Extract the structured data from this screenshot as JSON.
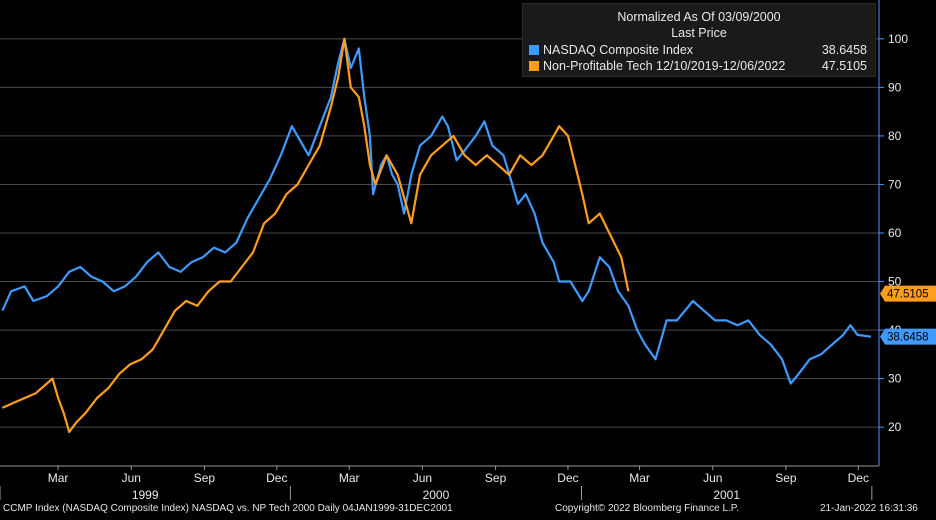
{
  "chart_data": {
    "type": "line",
    "title": "Normalized As Of 03/09/2000",
    "subtitle": "Last Price",
    "ylim": [
      12,
      108
    ],
    "y_ticks": [
      20,
      30,
      40,
      50,
      60,
      70,
      80,
      90,
      100
    ],
    "month_labels": [
      "Mar",
      "Jun",
      "Sep",
      "Dec",
      "Mar",
      "Jun",
      "Sep",
      "Dec",
      "Mar",
      "Jun",
      "Sep",
      "Dec"
    ],
    "year_labels": [
      "1999",
      "2000",
      "2001"
    ],
    "series": [
      {
        "name": "NASDAQ Composite Index",
        "color": "#3f9bff",
        "last": 38.6458,
        "last_label": "38.6458",
        "points": [
          [
            "1999-01-04",
            44
          ],
          [
            "1999-01-15",
            48
          ],
          [
            "1999-02-01",
            49
          ],
          [
            "1999-02-12",
            46
          ],
          [
            "1999-03-01",
            47
          ],
          [
            "1999-03-15",
            49
          ],
          [
            "1999-03-29",
            52
          ],
          [
            "1999-04-12",
            53
          ],
          [
            "1999-04-26",
            51
          ],
          [
            "1999-05-10",
            50
          ],
          [
            "1999-05-24",
            48
          ],
          [
            "1999-06-07",
            49
          ],
          [
            "1999-06-21",
            51
          ],
          [
            "1999-07-05",
            54
          ],
          [
            "1999-07-19",
            56
          ],
          [
            "1999-08-02",
            53
          ],
          [
            "1999-08-16",
            52
          ],
          [
            "1999-08-30",
            54
          ],
          [
            "1999-09-13",
            55
          ],
          [
            "1999-09-27",
            57
          ],
          [
            "1999-10-11",
            56
          ],
          [
            "1999-10-25",
            58
          ],
          [
            "1999-11-08",
            63
          ],
          [
            "1999-11-22",
            67
          ],
          [
            "1999-12-06",
            71
          ],
          [
            "1999-12-20",
            76
          ],
          [
            "2000-01-03",
            82
          ],
          [
            "2000-01-10",
            80
          ],
          [
            "2000-01-24",
            76
          ],
          [
            "2000-02-07",
            82
          ],
          [
            "2000-02-21",
            88
          ],
          [
            "2000-03-01",
            95
          ],
          [
            "2000-03-09",
            100
          ],
          [
            "2000-03-17",
            94
          ],
          [
            "2000-03-27",
            98
          ],
          [
            "2000-04-03",
            88
          ],
          [
            "2000-04-10",
            80
          ],
          [
            "2000-04-14",
            68
          ],
          [
            "2000-04-24",
            74
          ],
          [
            "2000-05-01",
            76
          ],
          [
            "2000-05-08",
            72
          ],
          [
            "2000-05-15",
            70
          ],
          [
            "2000-05-23",
            64
          ],
          [
            "2000-06-01",
            72
          ],
          [
            "2000-06-12",
            78
          ],
          [
            "2000-06-26",
            80
          ],
          [
            "2000-07-10",
            84
          ],
          [
            "2000-07-17",
            82
          ],
          [
            "2000-07-28",
            75
          ],
          [
            "2000-08-07",
            77
          ],
          [
            "2000-08-21",
            80
          ],
          [
            "2000-09-01",
            83
          ],
          [
            "2000-09-11",
            78
          ],
          [
            "2000-09-25",
            76
          ],
          [
            "2000-10-06",
            70
          ],
          [
            "2000-10-13",
            66
          ],
          [
            "2000-10-23",
            68
          ],
          [
            "2000-11-03",
            64
          ],
          [
            "2000-11-13",
            58
          ],
          [
            "2000-11-27",
            54
          ],
          [
            "2000-12-04",
            50
          ],
          [
            "2000-12-18",
            50
          ],
          [
            "2001-01-02",
            46
          ],
          [
            "2001-01-10",
            48
          ],
          [
            "2001-01-24",
            55
          ],
          [
            "2001-02-05",
            53
          ],
          [
            "2001-02-16",
            48
          ],
          [
            "2001-03-01",
            45
          ],
          [
            "2001-03-12",
            40
          ],
          [
            "2001-03-22",
            37
          ],
          [
            "2001-04-04",
            34
          ],
          [
            "2001-04-18",
            42
          ],
          [
            "2001-05-01",
            42
          ],
          [
            "2001-05-21",
            46
          ],
          [
            "2001-06-04",
            44
          ],
          [
            "2001-06-18",
            42
          ],
          [
            "2001-07-02",
            42
          ],
          [
            "2001-07-16",
            41
          ],
          [
            "2001-07-30",
            42
          ],
          [
            "2001-08-13",
            39
          ],
          [
            "2001-08-27",
            37
          ],
          [
            "2001-09-10",
            34
          ],
          [
            "2001-09-21",
            29
          ],
          [
            "2001-10-01",
            31
          ],
          [
            "2001-10-15",
            34
          ],
          [
            "2001-10-29",
            35
          ],
          [
            "2001-11-12",
            37
          ],
          [
            "2001-11-26",
            39
          ],
          [
            "2001-12-05",
            41
          ],
          [
            "2001-12-14",
            39
          ],
          [
            "2001-12-31",
            38.6458
          ]
        ]
      },
      {
        "name": "Non-Profitable Tech 12/10/2019-12/06/2022",
        "color": "#ff9d1c",
        "last": 47.5105,
        "last_label": "47.5105",
        "points": [
          [
            "1999-01-04",
            24
          ],
          [
            "1999-01-18",
            25
          ],
          [
            "1999-02-01",
            26
          ],
          [
            "1999-02-15",
            27
          ],
          [
            "1999-03-01",
            29
          ],
          [
            "1999-03-08",
            30
          ],
          [
            "1999-03-15",
            26
          ],
          [
            "1999-03-22",
            23
          ],
          [
            "1999-03-29",
            19
          ],
          [
            "1999-04-07",
            21
          ],
          [
            "1999-04-19",
            23
          ],
          [
            "1999-05-03",
            26
          ],
          [
            "1999-05-17",
            28
          ],
          [
            "1999-05-31",
            31
          ],
          [
            "1999-06-14",
            33
          ],
          [
            "1999-06-28",
            34
          ],
          [
            "1999-07-12",
            36
          ],
          [
            "1999-07-26",
            40
          ],
          [
            "1999-08-09",
            44
          ],
          [
            "1999-08-23",
            46
          ],
          [
            "1999-09-06",
            45
          ],
          [
            "1999-09-20",
            48
          ],
          [
            "1999-10-04",
            50
          ],
          [
            "1999-10-18",
            50
          ],
          [
            "1999-11-01",
            53
          ],
          [
            "1999-11-15",
            56
          ],
          [
            "1999-11-29",
            62
          ],
          [
            "1999-12-13",
            64
          ],
          [
            "1999-12-27",
            68
          ],
          [
            "2000-01-10",
            70
          ],
          [
            "2000-01-24",
            74
          ],
          [
            "2000-02-07",
            78
          ],
          [
            "2000-02-21",
            86
          ],
          [
            "2000-03-01",
            92
          ],
          [
            "2000-03-09",
            100
          ],
          [
            "2000-03-17",
            90
          ],
          [
            "2000-03-27",
            88
          ],
          [
            "2000-04-03",
            82
          ],
          [
            "2000-04-10",
            74
          ],
          [
            "2000-04-17",
            70
          ],
          [
            "2000-05-01",
            76
          ],
          [
            "2000-05-15",
            72
          ],
          [
            "2000-06-01",
            62
          ],
          [
            "2000-06-12",
            72
          ],
          [
            "2000-06-26",
            76
          ],
          [
            "2000-07-10",
            78
          ],
          [
            "2000-07-24",
            80
          ],
          [
            "2000-08-07",
            76
          ],
          [
            "2000-08-21",
            74
          ],
          [
            "2000-09-04",
            76
          ],
          [
            "2000-09-18",
            74
          ],
          [
            "2000-10-02",
            72
          ],
          [
            "2000-10-16",
            76
          ],
          [
            "2000-10-30",
            74
          ],
          [
            "2000-11-13",
            76
          ],
          [
            "2000-11-27",
            80
          ],
          [
            "2000-12-04",
            82
          ],
          [
            "2000-12-15",
            80
          ],
          [
            "2001-01-02",
            68
          ],
          [
            "2001-01-10",
            62
          ],
          [
            "2001-01-24",
            64
          ],
          [
            "2001-02-05",
            60
          ],
          [
            "2001-02-20",
            55
          ],
          [
            "2001-03-01",
            48
          ]
        ]
      }
    ]
  },
  "footer": {
    "left": "CCMP Index (NASDAQ Composite Index) NASDAQ vs. NP Tech 2000  Daily 04JAN1999-31DEC2001",
    "center": "Copyright© 2022 Bloomberg Finance L.P.",
    "right": "21-Jan-2022 16:31:36"
  }
}
